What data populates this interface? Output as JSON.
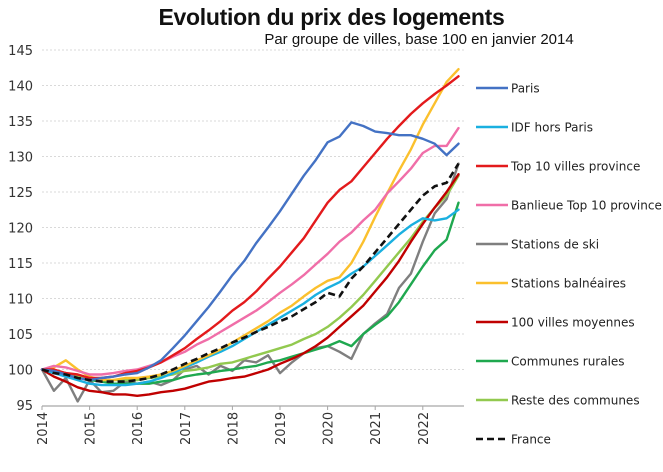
{
  "chart_data": {
    "type": "line",
    "title": "Evolution du prix des logements",
    "subtitle": "Par groupe de villes, base 100 en janvier 2014",
    "xlabel": "",
    "ylabel": "",
    "ylim": [
      95,
      145
    ],
    "yticks": [
      95,
      100,
      105,
      110,
      115,
      120,
      125,
      130,
      135,
      140,
      145
    ],
    "xlim": [
      2014,
      2022.75
    ],
    "xticks": [
      "2014",
      "2015",
      "2016",
      "2017",
      "2018",
      "2019",
      "2020",
      "2021",
      "2022"
    ],
    "grid": "horizontal dotted",
    "legend": "right",
    "x": [
      2014.0,
      2014.25,
      2014.5,
      2014.75,
      2015.0,
      2015.25,
      2015.5,
      2015.75,
      2016.0,
      2016.25,
      2016.5,
      2016.75,
      2017.0,
      2017.25,
      2017.5,
      2017.75,
      2018.0,
      2018.25,
      2018.5,
      2018.75,
      2019.0,
      2019.25,
      2019.5,
      2019.75,
      2020.0,
      2020.25,
      2020.5,
      2020.75,
      2021.0,
      2021.25,
      2021.5,
      2021.75,
      2022.0,
      2022.25,
      2022.5,
      2022.75
    ],
    "series": [
      {
        "name": "Paris",
        "color": "#4472c4",
        "dash": false,
        "values": [
          100,
          99.8,
          99.3,
          98.8,
          98.5,
          98.8,
          99.0,
          99.3,
          99.5,
          100.3,
          101.3,
          103.0,
          104.8,
          106.8,
          108.8,
          111.0,
          113.3,
          115.3,
          117.8,
          120.0,
          122.3,
          124.8,
          127.3,
          129.5,
          132.0,
          132.8,
          134.8,
          134.3,
          133.5,
          133.3,
          133.0,
          133.0,
          132.5,
          131.8,
          130.2,
          131.8
        ]
      },
      {
        "name": "IDF hors Paris",
        "color": "#1ab0e0",
        "dash": false,
        "values": [
          100,
          99.5,
          99.0,
          98.5,
          98.0,
          97.8,
          97.8,
          97.8,
          98.0,
          98.3,
          98.8,
          99.5,
          100.3,
          101.0,
          101.8,
          102.5,
          103.3,
          104.3,
          105.3,
          106.3,
          107.3,
          108.3,
          109.3,
          110.5,
          111.5,
          112.3,
          113.5,
          114.5,
          116.0,
          117.5,
          119.0,
          120.3,
          121.3,
          121.0,
          121.3,
          122.5
        ]
      },
      {
        "name": "Top 10 villes province",
        "color": "#e31a1c",
        "dash": false,
        "values": [
          100,
          100.0,
          99.5,
          99.3,
          98.8,
          98.8,
          99.0,
          99.5,
          99.8,
          100.3,
          101.0,
          102.0,
          103.0,
          104.3,
          105.5,
          106.8,
          108.3,
          109.5,
          111.0,
          112.8,
          114.5,
          116.5,
          118.5,
          121.0,
          123.5,
          125.3,
          126.5,
          128.5,
          130.5,
          132.5,
          134.3,
          136.0,
          137.5,
          138.8,
          140.0,
          141.3
        ]
      },
      {
        "name": "Banlieue Top 10 province",
        "color": "#f06ea8",
        "dash": false,
        "values": [
          100,
          100.5,
          100.3,
          99.8,
          99.3,
          99.3,
          99.5,
          99.8,
          100.0,
          100.5,
          101.0,
          101.8,
          102.5,
          103.5,
          104.3,
          105.3,
          106.3,
          107.3,
          108.3,
          109.5,
          110.8,
          112.0,
          113.3,
          114.8,
          116.3,
          118.0,
          119.3,
          121.0,
          122.5,
          124.8,
          126.5,
          128.3,
          130.5,
          131.5,
          131.5,
          134.0
        ]
      },
      {
        "name": "Stations de ski",
        "color": "#7f7f7f",
        "dash": false,
        "values": [
          100,
          97.0,
          98.8,
          95.5,
          98.5,
          96.8,
          97.0,
          98.3,
          98.0,
          98.3,
          97.8,
          98.5,
          100.0,
          100.5,
          99.3,
          100.5,
          99.8,
          101.3,
          101.0,
          102.0,
          99.5,
          101.0,
          102.3,
          103.0,
          103.3,
          102.5,
          101.5,
          105.0,
          106.5,
          107.8,
          111.5,
          113.5,
          118.0,
          122.0,
          124.0,
          129.0
        ]
      },
      {
        "name": "Stations balnéaires",
        "color": "#fbc02d",
        "dash": false,
        "values": [
          100,
          100.3,
          101.3,
          100.0,
          99.0,
          98.5,
          98.5,
          98.8,
          98.8,
          99.0,
          99.3,
          99.8,
          100.5,
          101.3,
          102.0,
          102.8,
          103.8,
          104.8,
          105.8,
          106.8,
          108.0,
          109.0,
          110.3,
          111.5,
          112.5,
          113.0,
          115.0,
          118.0,
          121.5,
          124.8,
          128.0,
          131.0,
          134.5,
          137.5,
          140.5,
          142.3
        ]
      },
      {
        "name": "100 villes moyennes",
        "color": "#c00000",
        "dash": false,
        "values": [
          100,
          99.0,
          98.3,
          97.5,
          97.0,
          96.8,
          96.5,
          96.5,
          96.3,
          96.5,
          96.8,
          97.0,
          97.3,
          97.8,
          98.3,
          98.5,
          98.8,
          99.0,
          99.5,
          100.0,
          100.8,
          101.5,
          102.3,
          103.3,
          104.5,
          106.0,
          107.5,
          109.0,
          111.0,
          113.0,
          115.3,
          118.0,
          120.5,
          122.8,
          125.0,
          127.5
        ]
      },
      {
        "name": "Communes rurales",
        "color": "#1fa84f",
        "dash": false,
        "values": [
          100,
          99.8,
          99.5,
          99.0,
          98.5,
          98.3,
          98.0,
          98.0,
          98.0,
          98.0,
          98.3,
          98.5,
          99.0,
          99.3,
          99.5,
          99.8,
          100.0,
          100.3,
          100.5,
          101.0,
          101.3,
          101.8,
          102.3,
          102.8,
          103.3,
          104.0,
          103.3,
          105.0,
          106.3,
          107.5,
          109.5,
          112.0,
          114.5,
          116.8,
          118.3,
          123.5
        ]
      },
      {
        "name": "Reste des communes",
        "color": "#92c94f",
        "dash": false,
        "values": [
          100,
          99.8,
          99.5,
          99.0,
          98.8,
          98.5,
          98.5,
          98.5,
          98.5,
          98.8,
          99.0,
          99.3,
          99.8,
          100.0,
          100.3,
          100.8,
          101.0,
          101.5,
          102.0,
          102.5,
          103.0,
          103.5,
          104.3,
          105.0,
          106.0,
          107.3,
          108.8,
          110.5,
          112.5,
          114.5,
          116.5,
          118.5,
          120.8,
          122.8,
          124.5,
          127.3
        ]
      },
      {
        "name": "France",
        "color": "#111111",
        "dash": true,
        "values": [
          100,
          99.5,
          99.3,
          98.8,
          98.5,
          98.3,
          98.3,
          98.3,
          98.5,
          98.8,
          99.3,
          100.0,
          100.8,
          101.5,
          102.3,
          103.0,
          103.8,
          104.5,
          105.3,
          106.0,
          106.8,
          107.5,
          108.5,
          109.5,
          110.8,
          110.3,
          112.8,
          114.5,
          116.5,
          118.5,
          120.5,
          122.5,
          124.5,
          125.8,
          126.3,
          129.0
        ]
      }
    ]
  }
}
